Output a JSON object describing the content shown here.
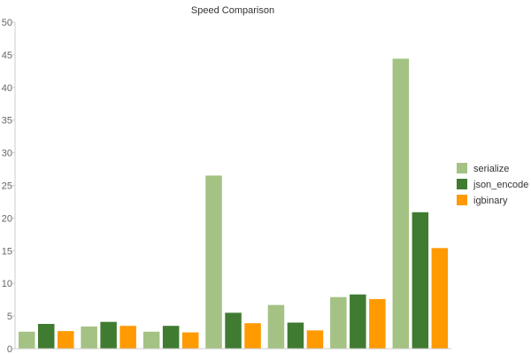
{
  "chart_data": {
    "type": "bar",
    "title": "Speed Comparison",
    "xlabel": "",
    "ylabel": "",
    "ylim": [
      0,
      50
    ],
    "y_ticks": [
      0,
      5,
      10,
      15,
      20,
      25,
      30,
      35,
      40,
      45,
      50
    ],
    "grid": false,
    "legend_position": "right",
    "category_count": 7,
    "series": [
      {
        "name": "serialize",
        "color": "#a4c283",
        "values": [
          2.6,
          3.4,
          2.6,
          26.5,
          6.7,
          7.9,
          44.4
        ]
      },
      {
        "name": "json_encode",
        "color": "#407b32",
        "values": [
          3.8,
          4.1,
          3.5,
          5.5,
          4.0,
          8.3,
          20.9
        ]
      },
      {
        "name": "igbinary",
        "color": "#ff9a00",
        "values": [
          2.7,
          3.5,
          2.5,
          3.9,
          2.8,
          7.6,
          15.4
        ]
      }
    ]
  }
}
